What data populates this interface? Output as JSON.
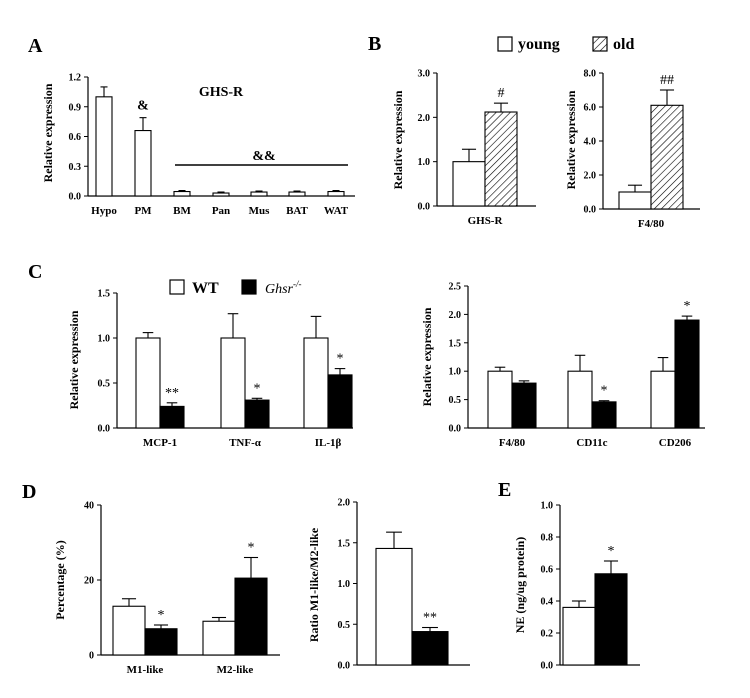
{
  "chart_data": [
    {
      "panel": "A",
      "type": "bar",
      "title": "GHS-R",
      "ylabel": "Relative expression",
      "ylim": [
        0,
        1.2
      ],
      "yticks": [
        "0.0",
        "0.3",
        "0.6",
        "0.9",
        "1.2"
      ],
      "categories": [
        "Hypo",
        "PM",
        "BM",
        "Pan",
        "Mus",
        "BAT",
        "WAT"
      ],
      "series": [
        {
          "name": "expression",
          "fill": "white",
          "values": [
            1.0,
            0.66,
            0.045,
            0.03,
            0.04,
            0.04,
            0.045
          ],
          "errors": [
            0.1,
            0.13,
            0.01,
            0.01,
            0.01,
            0.01,
            0.01
          ]
        }
      ],
      "annotations": {
        "PM": "&",
        "group_BM_to_WAT": "&&"
      }
    },
    {
      "panel": "B",
      "type": "bar",
      "ylabel": "Relative expression",
      "ylim": [
        0,
        3.0
      ],
      "yticks": [
        "0.0",
        "1.0",
        "2.0",
        "3.0"
      ],
      "categories": [
        "GHS-R"
      ],
      "series": [
        {
          "name": "young",
          "fill": "white",
          "values": [
            1.0
          ],
          "errors": [
            0.28
          ]
        },
        {
          "name": "old",
          "fill": "hatched",
          "values": [
            2.12
          ],
          "errors": [
            0.2
          ]
        }
      ],
      "annotations": [
        "#"
      ]
    },
    {
      "panel": "B",
      "type": "bar",
      "ylabel": "Relative expression",
      "ylim": [
        0,
        8.0
      ],
      "yticks": [
        "0.0",
        "2.0",
        "4.0",
        "6.0",
        "8.0"
      ],
      "categories": [
        "F4/80"
      ],
      "series": [
        {
          "name": "young",
          "fill": "white",
          "values": [
            1.0
          ],
          "errors": [
            0.4
          ]
        },
        {
          "name": "old",
          "fill": "hatched",
          "values": [
            6.1
          ],
          "errors": [
            0.9
          ]
        }
      ],
      "annotations": [
        "##"
      ]
    },
    {
      "panel": "C",
      "type": "bar",
      "ylabel": "Relative expression",
      "ylim": [
        0,
        1.5
      ],
      "yticks": [
        "0.0",
        "0.5",
        "1.0",
        "1.5"
      ],
      "categories": [
        "MCP-1",
        "TNF-α",
        "IL-1β"
      ],
      "series": [
        {
          "name": "WT",
          "fill": "white",
          "values": [
            1.0,
            1.0,
            1.0
          ],
          "errors": [
            0.06,
            0.27,
            0.24
          ]
        },
        {
          "name": "Ghsr-/-",
          "fill": "black",
          "values": [
            0.24,
            0.31,
            0.59
          ],
          "errors": [
            0.04,
            0.02,
            0.07
          ]
        }
      ],
      "annotations": [
        "**",
        "*",
        "*"
      ]
    },
    {
      "panel": "C",
      "type": "bar",
      "ylabel": "Relative expression",
      "ylim": [
        0,
        2.5
      ],
      "yticks": [
        "0.0",
        "0.5",
        "1.0",
        "1.5",
        "2.0",
        "2.5"
      ],
      "categories": [
        "F4/80",
        "CD11c",
        "CD206"
      ],
      "series": [
        {
          "name": "WT",
          "fill": "white",
          "values": [
            1.0,
            1.0,
            1.0
          ],
          "errors": [
            0.07,
            0.28,
            0.24
          ]
        },
        {
          "name": "Ghsr-/-",
          "fill": "black",
          "values": [
            0.79,
            0.46,
            1.9
          ],
          "errors": [
            0.04,
            0.02,
            0.07
          ]
        }
      ],
      "annotations": [
        "",
        "*",
        "*"
      ]
    },
    {
      "panel": "D",
      "type": "bar",
      "ylabel": "Percentage (%)",
      "ylim": [
        0,
        40
      ],
      "yticks": [
        "0",
        "20",
        "40"
      ],
      "categories": [
        "M1-like",
        "M2-like"
      ],
      "series": [
        {
          "name": "WT",
          "fill": "white",
          "values": [
            13.0,
            9.0
          ],
          "errors": [
            2.0,
            1.0
          ]
        },
        {
          "name": "Ghsr-/-",
          "fill": "black",
          "values": [
            7.0,
            20.5
          ],
          "errors": [
            1.0,
            5.5
          ]
        }
      ],
      "annotations": [
        "*",
        "*"
      ]
    },
    {
      "panel": "D",
      "type": "bar",
      "ylabel": "Ratio M1-like/M2-like",
      "ylim": [
        0,
        2.0
      ],
      "yticks": [
        "0.0",
        "0.5",
        "1.0",
        "1.5",
        "2.0"
      ],
      "categories": [
        ""
      ],
      "series": [
        {
          "name": "WT",
          "fill": "white",
          "values": [
            1.43
          ],
          "errors": [
            0.2
          ]
        },
        {
          "name": "Ghsr-/-",
          "fill": "black",
          "values": [
            0.41
          ],
          "errors": [
            0.05
          ]
        }
      ],
      "annotations": [
        "**"
      ]
    },
    {
      "panel": "E",
      "type": "bar",
      "ylabel": "NE (ng/ug protein)",
      "ylim": [
        0,
        1.0
      ],
      "yticks": [
        "0.0",
        "0.2",
        "0.4",
        "0.6",
        "0.8",
        "1.0"
      ],
      "categories": [
        ""
      ],
      "series": [
        {
          "name": "WT",
          "fill": "white",
          "values": [
            0.36
          ],
          "errors": [
            0.04
          ]
        },
        {
          "name": "Ghsr-/-",
          "fill": "black",
          "values": [
            0.57
          ],
          "errors": [
            0.08
          ]
        }
      ],
      "annotations": [
        "*"
      ]
    }
  ],
  "legends": {
    "B": {
      "young": "young",
      "old": "old"
    },
    "C": {
      "wt": "WT",
      "ko_base": "Ghsr",
      "ko_sup": "-/-"
    }
  }
}
